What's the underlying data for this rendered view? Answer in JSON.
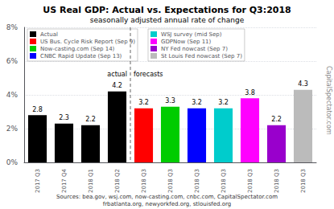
{
  "chart_data": {
    "type": "bar",
    "title": "US Real GDP: Actual vs. Expectations for Q3:2018",
    "subtitle": "seasonally adjusted annual rate of change",
    "categories": [
      "2017 Q3",
      "2017 Q4",
      "2018 Q1",
      "2018 Q2",
      "2018 Q3",
      "2018 Q3",
      "2018 Q3",
      "2018 Q3",
      "2018 Q3",
      "2018 Q3",
      "2018 Q3"
    ],
    "series": [
      {
        "name": "Actual",
        "color": "#000000",
        "values": [
          2.8,
          2.3,
          2.2,
          4.2,
          null,
          null,
          null,
          null,
          null,
          null,
          null
        ]
      },
      {
        "name": "US Bus. Cycle Risk Report (Sep 9)",
        "color": "#ff0000",
        "values": [
          null,
          null,
          null,
          null,
          3.2,
          null,
          null,
          null,
          null,
          null,
          null
        ]
      },
      {
        "name": "Now-casting.com (Sep 14)",
        "color": "#00cc00",
        "values": [
          null,
          null,
          null,
          null,
          null,
          3.3,
          null,
          null,
          null,
          null,
          null
        ]
      },
      {
        "name": "CNBC Rapid Update (Sep 13)",
        "color": "#0000ff",
        "values": [
          null,
          null,
          null,
          null,
          null,
          null,
          3.2,
          null,
          null,
          null,
          null
        ]
      },
      {
        "name": "WSJ survey (mid Sep)",
        "color": "#00cccc",
        "values": [
          null,
          null,
          null,
          null,
          null,
          null,
          null,
          3.2,
          null,
          null,
          null
        ]
      },
      {
        "name": "GDPNow (Sep 11)",
        "color": "#ff00ff",
        "values": [
          null,
          null,
          null,
          null,
          null,
          null,
          null,
          null,
          3.8,
          null,
          null
        ]
      },
      {
        "name": "NY Fed nowcast (Sep 7)",
        "color": "#9900cc",
        "values": [
          null,
          null,
          null,
          null,
          null,
          null,
          null,
          null,
          null,
          2.2,
          null
        ]
      },
      {
        "name": "St Louis Fed nowcast (Sep 7)",
        "color": "#bbbbbb",
        "values": [
          null,
          null,
          null,
          null,
          null,
          null,
          null,
          null,
          null,
          null,
          4.3
        ]
      }
    ],
    "ylim": [
      0,
      8
    ],
    "yticks": [
      {
        "value": 0,
        "label": "0%"
      },
      {
        "value": 2,
        "label": "2%"
      },
      {
        "value": 4,
        "label": "4%"
      },
      {
        "value": 6,
        "label": "6%"
      },
      {
        "value": 8,
        "label": "8%"
      }
    ],
    "grid": true,
    "data_labels": true,
    "legend": "upper left",
    "annotations": [
      "actual",
      "forecasts"
    ],
    "watermark": "CapitalSpectator.com",
    "source": "Sources: bea.gov, wsj.com, now-casting.com, cnbc.com, CapitalSpectator.com\nfrbatlanta.org, newyorkfed.org, stlouisfed.org"
  }
}
